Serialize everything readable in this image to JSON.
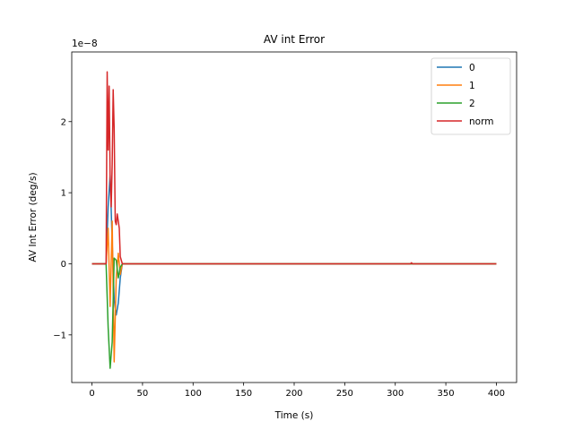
{
  "chart_data": {
    "type": "line",
    "title": "AV int Error",
    "xlabel": "Time (s)",
    "ylabel": "AV Int Error (deg/s)",
    "y_scale_label": "1e−8",
    "xlim": [
      -20,
      420
    ],
    "ylim": [
      -1.67,
      2.98
    ],
    "xticks": [
      0,
      50,
      100,
      150,
      200,
      250,
      300,
      350,
      400
    ],
    "yticks": [
      -1,
      0,
      1,
      2
    ],
    "yticks_text": [
      "−1",
      "0",
      "1",
      "2"
    ],
    "legend_position": "upper-right",
    "grid": false,
    "series": [
      {
        "name": "0",
        "color": "#1f77b4",
        "x": [
          0,
          14,
          16,
          18,
          20,
          22,
          24,
          26,
          28,
          30,
          400
        ],
        "y": [
          0,
          0,
          0.8,
          1.25,
          0.3,
          -0.5,
          -0.72,
          -0.55,
          -0.2,
          0,
          0
        ]
      },
      {
        "name": "1",
        "color": "#ff7f0e",
        "x": [
          0,
          14,
          16,
          18,
          20,
          22,
          24,
          26,
          28,
          30,
          400
        ],
        "y": [
          0,
          0,
          0.5,
          -0.6,
          0.6,
          -1.38,
          -0.2,
          0.15,
          -0.15,
          0,
          0
        ]
      },
      {
        "name": "2",
        "color": "#2ca02c",
        "x": [
          0,
          14,
          16,
          18,
          20,
          22,
          24,
          26,
          28,
          30,
          400
        ],
        "y": [
          0,
          0,
          -0.9,
          -1.47,
          -1.1,
          0.08,
          0.05,
          -0.2,
          -0.05,
          0,
          0
        ]
      },
      {
        "name": "norm",
        "color": "#d62728",
        "x": [
          0,
          14,
          15,
          16,
          17,
          18,
          19,
          20,
          21,
          22,
          23,
          24,
          25,
          26,
          27,
          28,
          30,
          315,
          316,
          317,
          400
        ],
        "y": [
          0,
          0,
          2.7,
          1.6,
          2.5,
          1.2,
          0.8,
          1.4,
          2.45,
          1.9,
          0.6,
          0.55,
          0.7,
          0.6,
          0.5,
          0.1,
          0,
          0,
          0.015,
          0,
          0
        ]
      }
    ]
  }
}
